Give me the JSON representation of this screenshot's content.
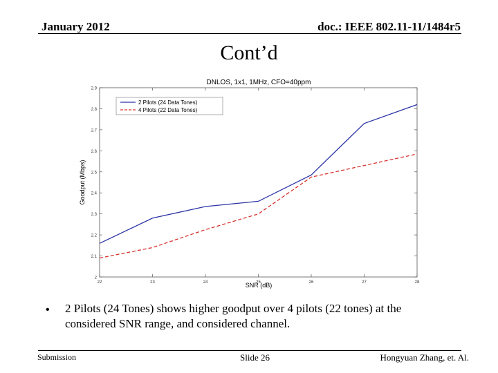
{
  "header": {
    "date": "January 2012",
    "doc": "doc.: IEEE 802.11-11/1484r5"
  },
  "slide_title": "Cont’d",
  "bullet": {
    "marker": "•",
    "text": "2 Pilots (24 Tones) shows higher goodput over 4 pilots (22 tones) at the considered SNR range, and considered channel."
  },
  "footer": {
    "left": "Submission",
    "center": "Slide 26",
    "right": "Hongyuan Zhang, et. Al."
  },
  "colors": {
    "series_blue": "#2b33a6",
    "series_red": "#d9302b"
  },
  "chart_data": {
    "type": "line",
    "title": "DNLOS, 1x1, 1MHz, CFO=40ppm",
    "xlabel": "SNR (dB)",
    "ylabel": "Goodput (Mbps)",
    "xlim": [
      22,
      28
    ],
    "ylim": [
      2,
      2.9
    ],
    "xticks": [
      22,
      23,
      24,
      25,
      26,
      27,
      28
    ],
    "yticks": [
      2,
      2.1,
      2.2,
      2.3,
      2.4,
      2.5,
      2.6,
      2.7,
      2.8,
      2.9
    ],
    "grid": false,
    "legend_position": "top-left",
    "x": [
      22,
      23,
      24,
      25,
      26,
      27,
      28
    ],
    "series": [
      {
        "name": "2 Pilots (24 Data Tones)",
        "values": [
          2.16,
          2.28,
          2.335,
          2.36,
          2.485,
          2.73,
          2.82
        ],
        "style": "solid",
        "color": "#2b33a6"
      },
      {
        "name": "4 Pilots (22 Data Tones)",
        "values": [
          2.09,
          2.14,
          2.225,
          2.3,
          2.475,
          2.53,
          2.585
        ],
        "style": "dashed",
        "color": "#d9302b"
      }
    ]
  }
}
